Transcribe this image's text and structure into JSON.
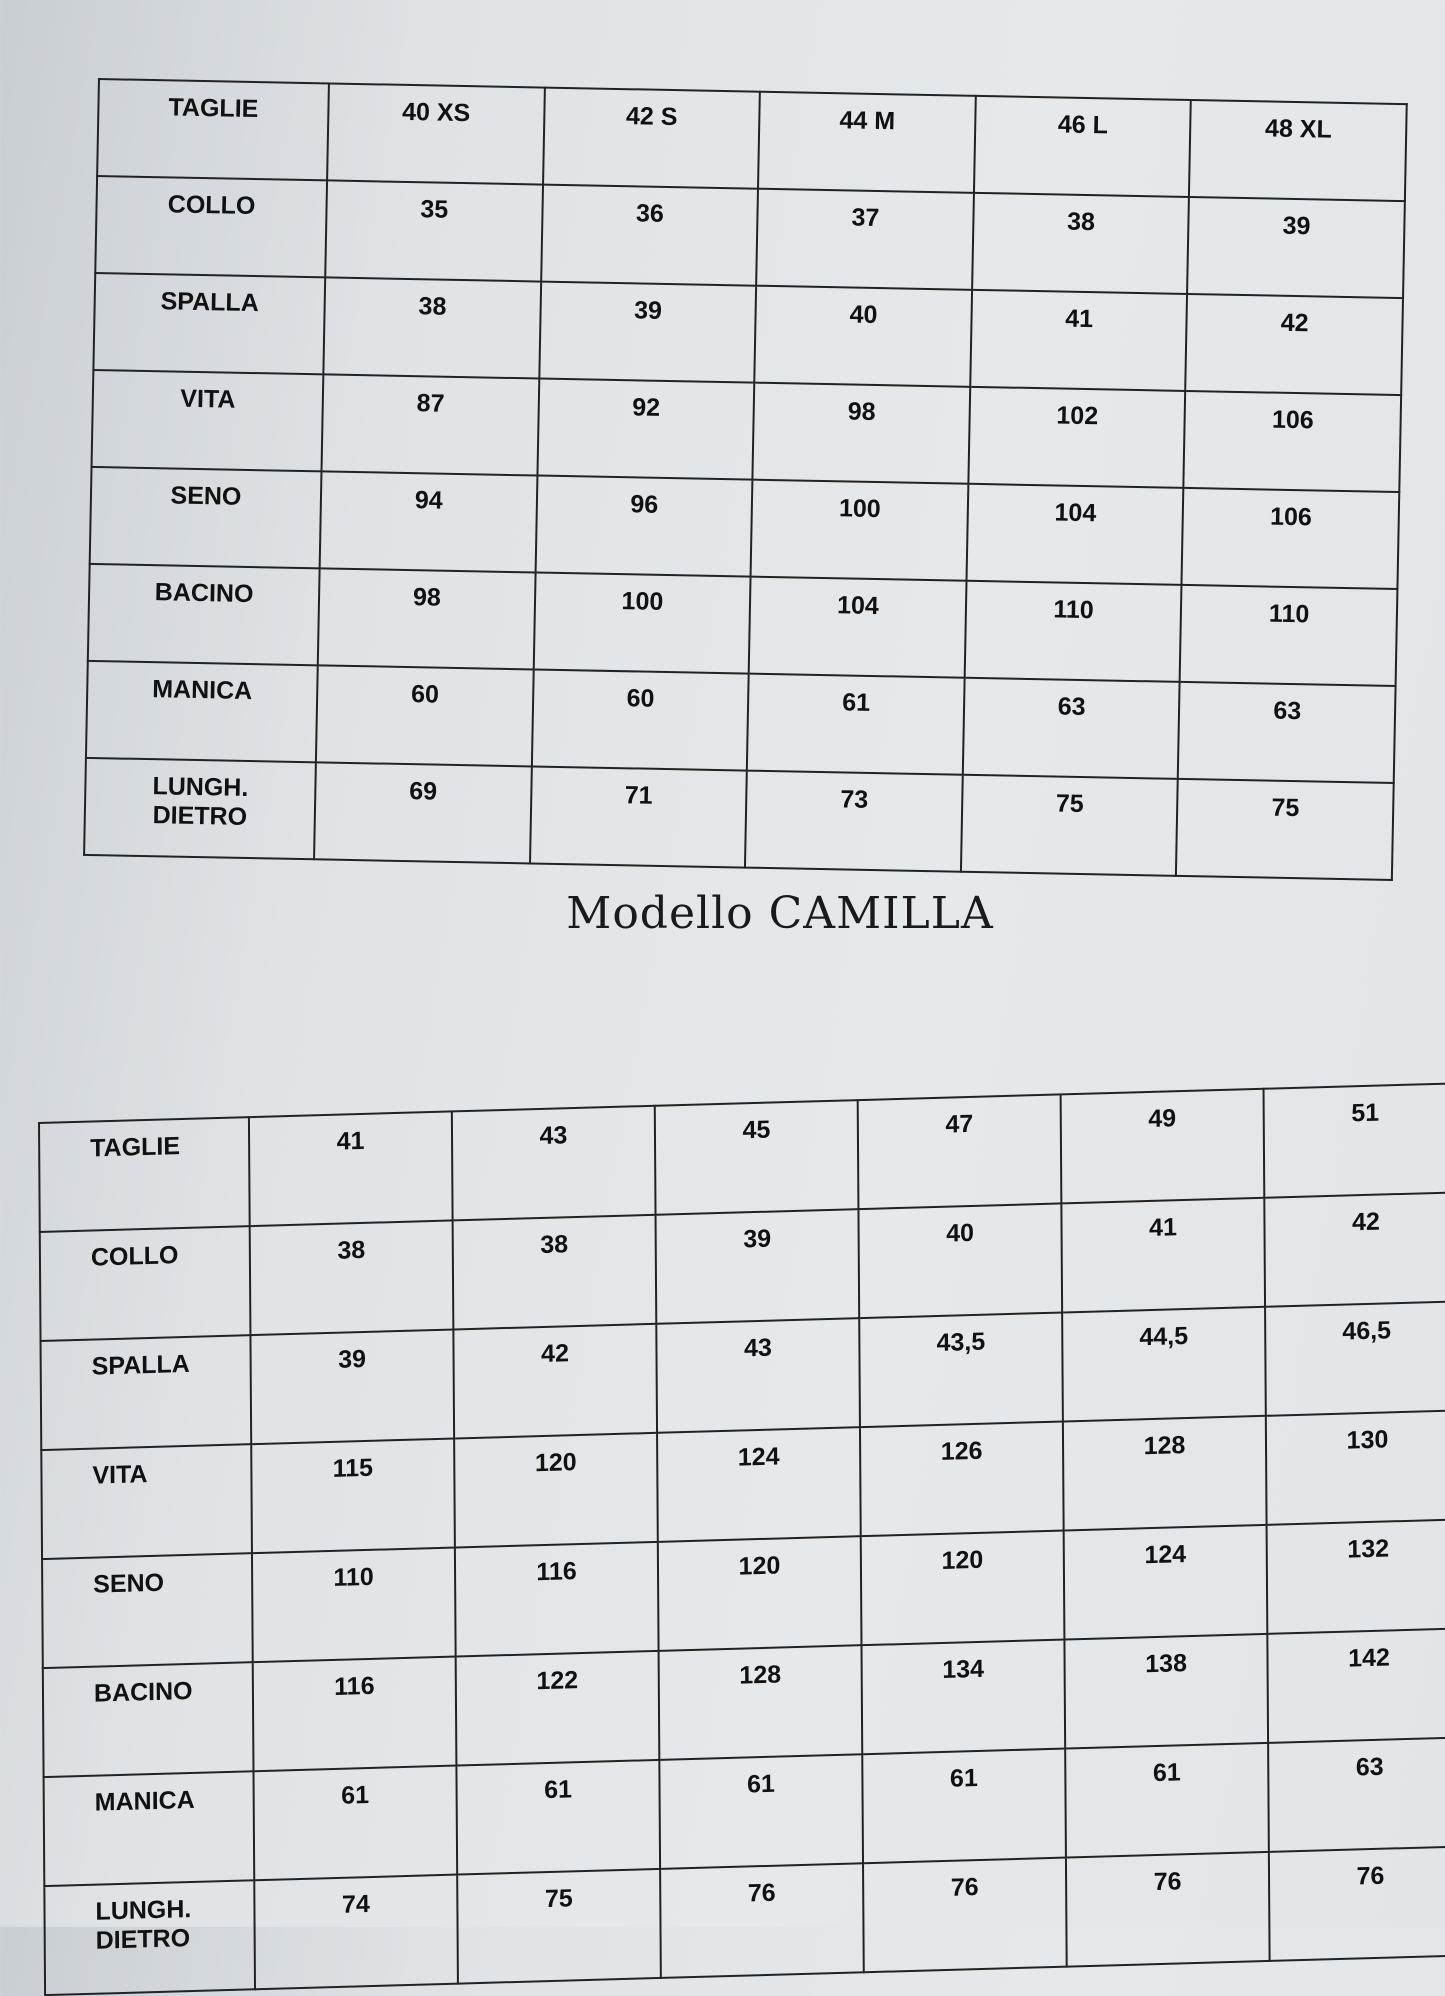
{
  "table_top": {
    "rows": [
      [
        "TAGLIE",
        "40 XS",
        "42 S",
        "44 M",
        "46 L",
        "48 XL"
      ],
      [
        "COLLO",
        "35",
        "36",
        "37",
        "38",
        "39"
      ],
      [
        "SPALLA",
        "38",
        "39",
        "40",
        "41",
        "42"
      ],
      [
        "VITA",
        "87",
        "92",
        "98",
        "102",
        "106"
      ],
      [
        "SENO",
        "94",
        "96",
        "100",
        "104",
        "106"
      ],
      [
        "BACINO",
        "98",
        "100",
        "104",
        "110",
        "110"
      ],
      [
        "MANICA",
        "60",
        "60",
        "61",
        "63",
        "63"
      ],
      [
        "LUNGH.\nDIETRO",
        "69",
        "71",
        "73",
        "75",
        "75"
      ]
    ]
  },
  "title": "Modello  CAMILLA",
  "table_bottom": {
    "rows": [
      [
        "TAGLIE",
        "41",
        "43",
        "45",
        "47",
        "49",
        "51"
      ],
      [
        "COLLO",
        "38",
        "38",
        "39",
        "40",
        "41",
        "42"
      ],
      [
        "SPALLA",
        "39",
        "42",
        "43",
        "43,5",
        "44,5",
        "46,5"
      ],
      [
        "VITA",
        "115",
        "120",
        "124",
        "126",
        "128",
        "130"
      ],
      [
        "SENO",
        "110",
        "116",
        "120",
        "120",
        "124",
        "132"
      ],
      [
        "BACINO",
        "116",
        "122",
        "128",
        "134",
        "138",
        "142"
      ],
      [
        "MANICA",
        "61",
        "61",
        "61",
        "61",
        "61",
        "63"
      ],
      [
        "LUNGH.\nDIETRO",
        "74",
        "75",
        "76",
        "76",
        "76",
        "76"
      ]
    ]
  }
}
